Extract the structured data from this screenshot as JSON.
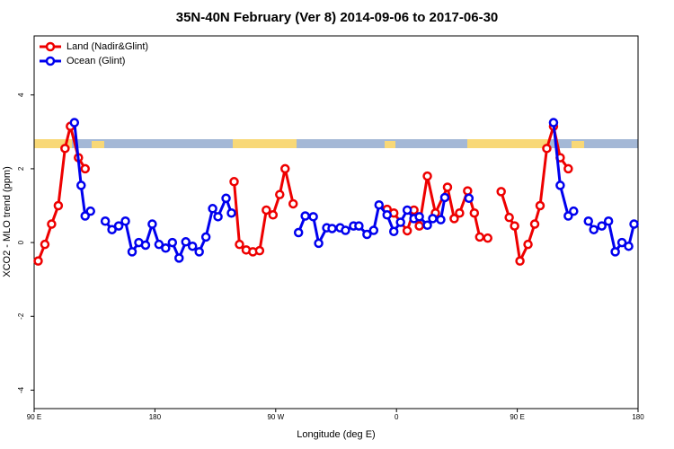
{
  "chart_data": {
    "type": "line",
    "title": "35N-40N February (Ver 8)   2014-09-06 to 2017-06-30",
    "x_label": "Longitude (deg E)",
    "y_label": "XCO2 - MLO trend (ppm)",
    "xlim": [
      90,
      540
    ],
    "xticks": [
      {
        "value": 90,
        "label": "90 E"
      },
      180,
      {
        "value": 270,
        "label": "90 W"
      },
      {
        "value": 360,
        "label": "0"
      },
      {
        "value": 450,
        "label": "90 E"
      },
      {
        "value": 540,
        "label": "180"
      }
    ],
    "ylim": [
      -4.5,
      5.6
    ],
    "yticks": [
      -4,
      -2,
      0,
      2,
      4
    ],
    "legend": "top-left",
    "series": [
      {
        "name": "Land (Nadir&Glint)",
        "color": "#ee0000",
        "x": [
          93,
          98,
          103,
          108,
          113,
          117,
          123,
          128,
          null,
          239,
          243,
          248,
          253,
          258,
          263,
          268,
          273,
          277,
          283,
          null,
          353,
          358,
          368,
          373,
          377,
          383,
          389,
          398,
          403,
          407,
          413,
          418,
          422,
          428,
          null,
          438,
          444,
          448,
          452,
          458,
          463,
          467,
          472,
          477,
          482,
          488
        ],
        "values": [
          -0.5,
          -0.05,
          0.5,
          1.0,
          2.55,
          3.15,
          2.3,
          2.0,
          null,
          1.65,
          -0.05,
          -0.2,
          -0.25,
          -0.22,
          0.88,
          0.75,
          1.3,
          2.0,
          1.05,
          null,
          0.9,
          0.8,
          0.32,
          0.88,
          0.45,
          1.8,
          0.8,
          1.5,
          0.65,
          0.8,
          1.4,
          0.8,
          0.15,
          0.12,
          null,
          1.38,
          0.68,
          0.45,
          -0.5,
          -0.05,
          0.5,
          1.0,
          2.55,
          3.15,
          2.3,
          2.0
        ]
      },
      {
        "name": "Ocean (Glint)",
        "color": "#0000ee",
        "x": [
          120,
          125,
          128,
          132,
          null,
          143,
          148,
          153,
          158,
          163,
          168,
          173,
          178,
          183,
          188,
          193,
          198,
          203,
          208,
          213,
          218,
          223,
          227,
          233,
          237,
          null,
          287,
          292,
          298,
          302,
          308,
          312,
          318,
          322,
          328,
          332,
          338,
          343,
          347,
          353,
          358,
          363,
          368,
          373,
          377,
          383,
          387,
          393,
          396,
          null,
          414,
          null,
          477,
          482,
          488,
          492,
          null,
          503,
          507,
          513,
          518,
          523,
          528,
          533,
          537
        ],
        "values": [
          3.25,
          1.55,
          0.72,
          0.85,
          null,
          0.58,
          0.35,
          0.45,
          0.58,
          -0.25,
          0.0,
          -0.07,
          0.5,
          -0.05,
          -0.15,
          0.0,
          -0.42,
          0.02,
          -0.1,
          -0.25,
          0.15,
          0.92,
          0.7,
          1.2,
          0.8,
          null,
          0.27,
          0.72,
          0.7,
          -0.02,
          0.4,
          0.38,
          0.4,
          0.33,
          0.45,
          0.45,
          0.22,
          0.33,
          1.02,
          0.75,
          0.3,
          0.55,
          0.88,
          0.65,
          0.7,
          0.47,
          0.65,
          0.62,
          1.22,
          null,
          1.2,
          null,
          3.25,
          1.55,
          0.72,
          0.85,
          null,
          0.58,
          0.35,
          0.45,
          0.58,
          -0.25,
          0.0,
          -0.1,
          0.5
        ]
      }
    ]
  }
}
